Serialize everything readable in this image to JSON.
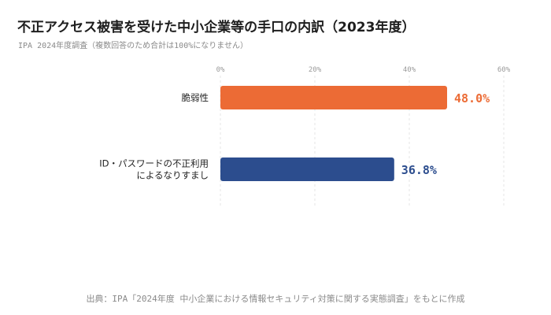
{
  "title": "不正アクセス被害を受けた中小企業等の手口の内訳（2023年度）",
  "subtitle": "IPA 2024年度調査（複数回答のため合計は100%になりません）",
  "source": "出典：IPA「2024年度 中小企業における情報セキュリティ対策に関する実態調査」をもとに作成",
  "chart_data": {
    "type": "bar",
    "orientation": "horizontal",
    "categories": [
      [
        "脆弱性"
      ],
      [
        "ID・パスワードの不正利用",
        "によるなりすまし"
      ]
    ],
    "values": [
      48.0,
      36.8
    ],
    "value_labels": [
      "48.0%",
      "36.8%"
    ],
    "colors": [
      "#ec6b35",
      "#2c4d8e"
    ],
    "xlim": [
      0,
      60
    ],
    "xticks": [
      0,
      20,
      40,
      60
    ],
    "xtick_labels": [
      "0%",
      "20%",
      "40%",
      "60%"
    ],
    "grid": true
  }
}
